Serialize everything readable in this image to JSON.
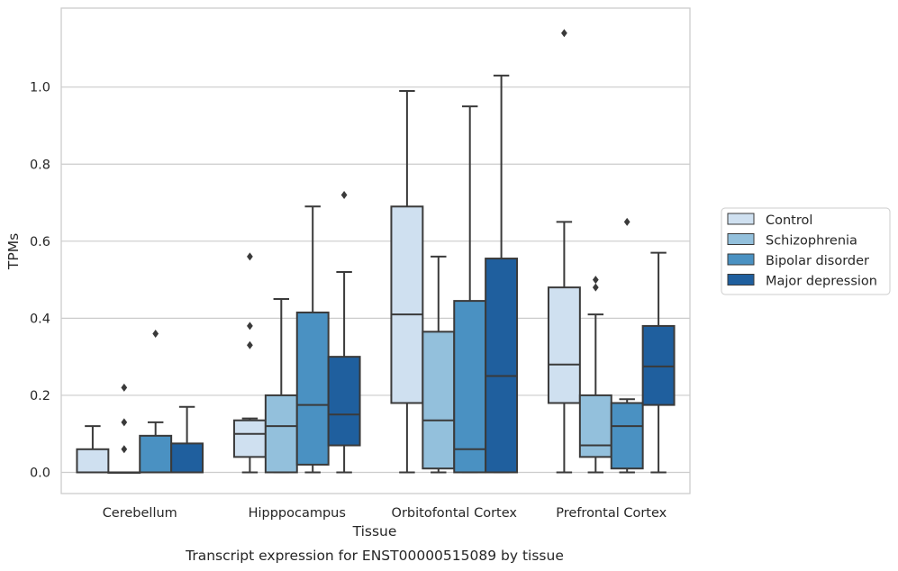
{
  "chart_data": {
    "type": "box",
    "xlabel": "Tissue",
    "ylabel": "TPMs",
    "caption": "Transcript expression for ENST00000515089 by tissue",
    "ylim": [
      -0.055,
      1.205
    ],
    "yticks": [
      "0.0",
      "0.2",
      "0.4",
      "0.6",
      "0.8",
      "1.0"
    ],
    "grid": "horizontal",
    "legend_position": "right",
    "categories": [
      "Cerebellum",
      "Hipppocampus",
      "Orbitofontal Cortex",
      "Prefrontal Cortex"
    ],
    "series": [
      {
        "name": "Control",
        "color": "#cfe0f0",
        "boxes": [
          {
            "whisker_low": 0.0,
            "q1": 0.0,
            "median": 0.0,
            "q3": 0.06,
            "whisker_high": 0.12,
            "outliers": []
          },
          {
            "whisker_low": 0.0,
            "q1": 0.04,
            "median": 0.1,
            "q3": 0.135,
            "whisker_high": 0.14,
            "outliers": [
              0.56,
              0.38,
              0.33
            ]
          },
          {
            "whisker_low": 0.0,
            "q1": 0.18,
            "median": 0.41,
            "q3": 0.69,
            "whisker_high": 0.99,
            "outliers": []
          },
          {
            "whisker_low": 0.0,
            "q1": 0.18,
            "median": 0.28,
            "q3": 0.48,
            "whisker_high": 0.65,
            "outliers": [
              1.14
            ]
          }
        ]
      },
      {
        "name": "Schizophrenia",
        "color": "#93c0dc",
        "boxes": [
          {
            "whisker_low": 0.0,
            "q1": 0.0,
            "median": 0.0,
            "q3": 0.0,
            "whisker_high": 0.0,
            "outliers": [
              0.22,
              0.13,
              0.06
            ]
          },
          {
            "whisker_low": 0.0,
            "q1": 0.0,
            "median": 0.12,
            "q3": 0.2,
            "whisker_high": 0.45,
            "outliers": []
          },
          {
            "whisker_low": 0.0,
            "q1": 0.01,
            "median": 0.135,
            "q3": 0.365,
            "whisker_high": 0.56,
            "outliers": []
          },
          {
            "whisker_low": 0.0,
            "q1": 0.04,
            "median": 0.07,
            "q3": 0.2,
            "whisker_high": 0.41,
            "outliers": [
              0.5,
              0.48
            ]
          }
        ]
      },
      {
        "name": "Bipolar disorder",
        "color": "#4a91c2",
        "boxes": [
          {
            "whisker_low": 0.0,
            "q1": 0.0,
            "median": 0.0,
            "q3": 0.095,
            "whisker_high": 0.13,
            "outliers": [
              0.36
            ]
          },
          {
            "whisker_low": 0.0,
            "q1": 0.02,
            "median": 0.175,
            "q3": 0.415,
            "whisker_high": 0.69,
            "outliers": []
          },
          {
            "whisker_low": 0.0,
            "q1": 0.0,
            "median": 0.06,
            "q3": 0.445,
            "whisker_high": 0.95,
            "outliers": []
          },
          {
            "whisker_low": 0.0,
            "q1": 0.01,
            "median": 0.12,
            "q3": 0.18,
            "whisker_high": 0.19,
            "outliers": [
              0.65
            ]
          }
        ]
      },
      {
        "name": "Major depression",
        "color": "#1f5f9e",
        "boxes": [
          {
            "whisker_low": 0.0,
            "q1": 0.0,
            "median": 0.0,
            "q3": 0.075,
            "whisker_high": 0.17,
            "outliers": []
          },
          {
            "whisker_low": 0.0,
            "q1": 0.07,
            "median": 0.15,
            "q3": 0.3,
            "whisker_high": 0.52,
            "outliers": [
              0.72
            ]
          },
          {
            "whisker_low": 0.0,
            "q1": 0.0,
            "median": 0.25,
            "q3": 0.555,
            "whisker_high": 1.03,
            "outliers": []
          },
          {
            "whisker_low": 0.0,
            "q1": 0.175,
            "median": 0.275,
            "q3": 0.38,
            "whisker_high": 0.57,
            "outliers": []
          }
        ]
      }
    ]
  }
}
